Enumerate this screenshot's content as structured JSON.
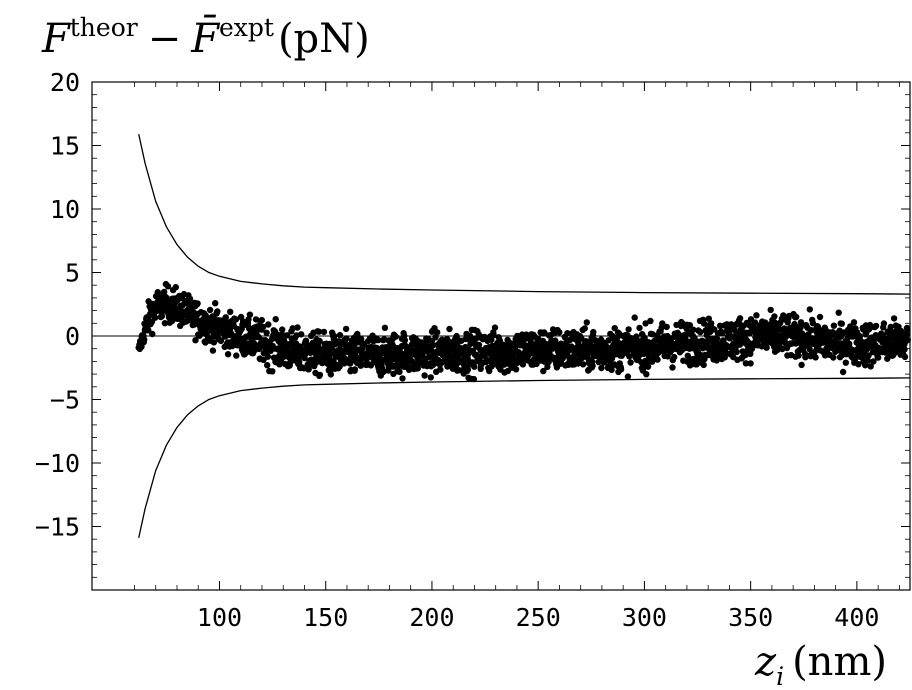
{
  "chart_data": {
    "type": "scatter",
    "title": "",
    "ylabel": {
      "base": "F",
      "sup1": "theor",
      "minus": "−",
      "base2": "F̄",
      "sup2": "expt",
      "unit": "(pN)"
    },
    "xlabel": {
      "base": "z",
      "sub": "i",
      "unit": "(nm)"
    },
    "xlim": [
      40,
      425
    ],
    "ylim": [
      -20,
      20
    ],
    "xticks": [
      100,
      150,
      200,
      250,
      300,
      350,
      400
    ],
    "yticks": [
      20,
      15,
      10,
      5,
      0,
      -5,
      -10,
      -15
    ],
    "grid": false,
    "zero_line": true,
    "confidence_band": {
      "x": [
        62,
        65,
        70,
        75,
        80,
        85,
        90,
        95,
        100,
        110,
        120,
        130,
        140,
        150,
        175,
        200,
        250,
        300,
        350,
        400,
        425
      ],
      "upper": [
        15.9,
        13.6,
        10.6,
        8.6,
        7.2,
        6.2,
        5.5,
        5.0,
        4.7,
        4.3,
        4.1,
        3.95,
        3.85,
        3.8,
        3.7,
        3.62,
        3.5,
        3.42,
        3.37,
        3.33,
        3.3
      ],
      "lower": [
        -15.9,
        -13.6,
        -10.6,
        -8.6,
        -7.2,
        -6.2,
        -5.5,
        -5.0,
        -4.7,
        -4.3,
        -4.1,
        -3.95,
        -3.85,
        -3.8,
        -3.7,
        -3.62,
        -3.5,
        -3.42,
        -3.37,
        -3.33,
        -3.3
      ]
    },
    "scatter": {
      "x": [
        62,
        63,
        64,
        65,
        66,
        67,
        68,
        69,
        70,
        72,
        74,
        76,
        78,
        80,
        82,
        84,
        86,
        88,
        90,
        92,
        95,
        98,
        100,
        103,
        106,
        110,
        114,
        118,
        122,
        126,
        130,
        135,
        140,
        145,
        150,
        155,
        160,
        165,
        170,
        175,
        180,
        185,
        190,
        195,
        200,
        205,
        210,
        215,
        220,
        225,
        230,
        235,
        240,
        245,
        250,
        255,
        260,
        265,
        270,
        275,
        280,
        285,
        290,
        295,
        300,
        305,
        310,
        315,
        320,
        325,
        330,
        335,
        340,
        345,
        350,
        355,
        360,
        365,
        370,
        375,
        380,
        385,
        390,
        395,
        400,
        405,
        410,
        415,
        420,
        424
      ],
      "y": [
        -1.2,
        -0.6,
        0.0,
        0.6,
        1.1,
        1.5,
        1.8,
        2.0,
        2.2,
        2.4,
        2.5,
        2.5,
        2.4,
        2.3,
        2.1,
        1.9,
        1.7,
        1.5,
        1.3,
        1.1,
        0.9,
        0.7,
        0.6,
        0.4,
        0.2,
        0.0,
        -0.2,
        -0.4,
        -0.6,
        -0.8,
        -1.0,
        -1.2,
        -1.3,
        -1.4,
        -1.5,
        -1.5,
        -1.5,
        -1.5,
        -1.5,
        -1.5,
        -1.4,
        -1.4,
        -1.4,
        -1.4,
        -1.3,
        -1.3,
        -1.3,
        -1.3,
        -1.3,
        -1.2,
        -1.2,
        -1.2,
        -1.2,
        -1.1,
        -1.1,
        -1.1,
        -1.1,
        -1.1,
        -1.1,
        -1.1,
        -1.1,
        -1.0,
        -1.0,
        -1.0,
        -0.9,
        -0.8,
        -0.7,
        -0.6,
        -0.5,
        -0.5,
        -0.4,
        -0.4,
        -0.3,
        -0.2,
        -0.1,
        0.0,
        0.0,
        0.0,
        -0.1,
        -0.2,
        -0.3,
        -0.4,
        -0.5,
        -0.6,
        -0.6,
        -0.6,
        -0.6,
        -0.5,
        -0.4,
        -0.3
      ],
      "spread": [
        0.4,
        0.5,
        0.6,
        0.7,
        0.8,
        0.9,
        0.9,
        1.0,
        1.0,
        1.0,
        1.0,
        1.0,
        1.0,
        1.0,
        1.0,
        1.0,
        1.0,
        1.0,
        1.0,
        1.0,
        1.0,
        1.1,
        1.1,
        1.1,
        1.1,
        1.1,
        1.1,
        1.2,
        1.2,
        1.2,
        1.2,
        1.2,
        1.2,
        1.2,
        1.2,
        1.2,
        1.2,
        1.2,
        1.2,
        1.2,
        1.2,
        1.2,
        1.2,
        1.2,
        1.2,
        1.2,
        1.2,
        1.2,
        1.2,
        1.2,
        1.2,
        1.2,
        1.2,
        1.2,
        1.2,
        1.2,
        1.2,
        1.2,
        1.2,
        1.2,
        1.2,
        1.2,
        1.2,
        1.2,
        1.2,
        1.2,
        1.2,
        1.2,
        1.2,
        1.2,
        1.2,
        1.2,
        1.2,
        1.2,
        1.2,
        1.2,
        1.2,
        1.2,
        1.2,
        1.2,
        1.2,
        1.2,
        1.2,
        1.2,
        1.2,
        1.2,
        1.2,
        1.2,
        1.2,
        1.2
      ]
    }
  }
}
